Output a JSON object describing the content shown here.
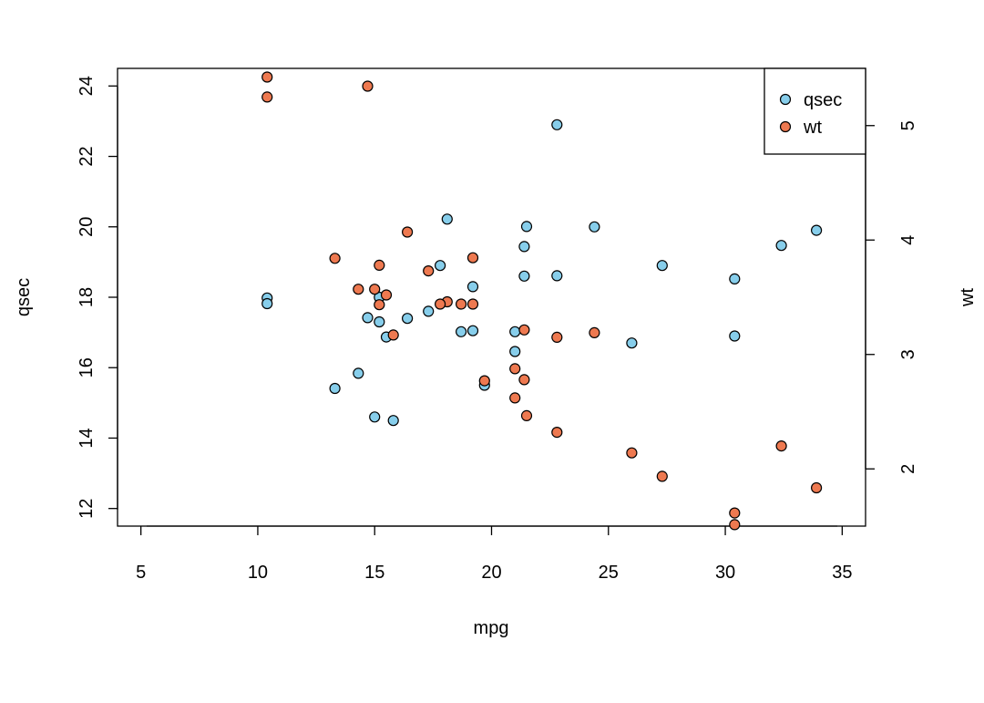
{
  "chart_data": {
    "type": "scatter",
    "title": "",
    "xlabel": "mpg",
    "ylabel": "qsec",
    "y2label": "wt",
    "xlim": [
      4,
      36
    ],
    "ylim": [
      11.5,
      24.5
    ],
    "y2lim": [
      1.5,
      5.5
    ],
    "x_ticks": [
      5,
      10,
      15,
      20,
      25,
      30,
      35
    ],
    "y_ticks": [
      12,
      14,
      16,
      18,
      20,
      22,
      24
    ],
    "y2_ticks": [
      2,
      3,
      4,
      5
    ],
    "grid": false,
    "legend_position": "top-right",
    "series": [
      {
        "name": "qsec",
        "axis": "left",
        "color": "#87CEEB",
        "x": [
          21,
          21,
          22.8,
          21.4,
          18.7,
          18.1,
          14.3,
          24.4,
          22.8,
          19.2,
          17.8,
          16.4,
          17.3,
          15.2,
          10.4,
          10.4,
          14.7,
          32.4,
          30.4,
          33.9,
          21.5,
          15.5,
          15.2,
          13.3,
          19.2,
          27.3,
          26,
          30.4,
          15.8,
          19.7,
          15,
          21.4
        ],
        "y": [
          16.46,
          17.02,
          18.61,
          19.44,
          17.02,
          20.22,
          15.84,
          20,
          22.9,
          18.3,
          18.9,
          17.4,
          17.6,
          18,
          17.98,
          17.82,
          17.42,
          19.47,
          18.52,
          19.9,
          20.01,
          16.87,
          17.3,
          15.41,
          17.05,
          18.9,
          16.7,
          16.9,
          14.5,
          15.5,
          14.6,
          18.6
        ]
      },
      {
        "name": "wt",
        "axis": "right",
        "color": "#EE7950",
        "x": [
          21,
          21,
          22.8,
          21.4,
          18.7,
          18.1,
          14.3,
          24.4,
          22.8,
          19.2,
          17.8,
          16.4,
          17.3,
          15.2,
          10.4,
          10.4,
          14.7,
          32.4,
          30.4,
          33.9,
          21.5,
          15.5,
          15.2,
          13.3,
          19.2,
          27.3,
          26,
          30.4,
          15.8,
          19.7,
          15,
          21.4
        ],
        "y": [
          2.62,
          2.875,
          2.32,
          3.215,
          3.44,
          3.46,
          3.57,
          3.19,
          3.15,
          3.44,
          3.44,
          4.07,
          3.73,
          3.78,
          5.25,
          5.424,
          5.345,
          2.2,
          1.615,
          1.835,
          2.465,
          3.52,
          3.435,
          3.84,
          3.845,
          1.935,
          2.14,
          1.513,
          3.17,
          2.77,
          3.57,
          2.78
        ]
      }
    ]
  }
}
